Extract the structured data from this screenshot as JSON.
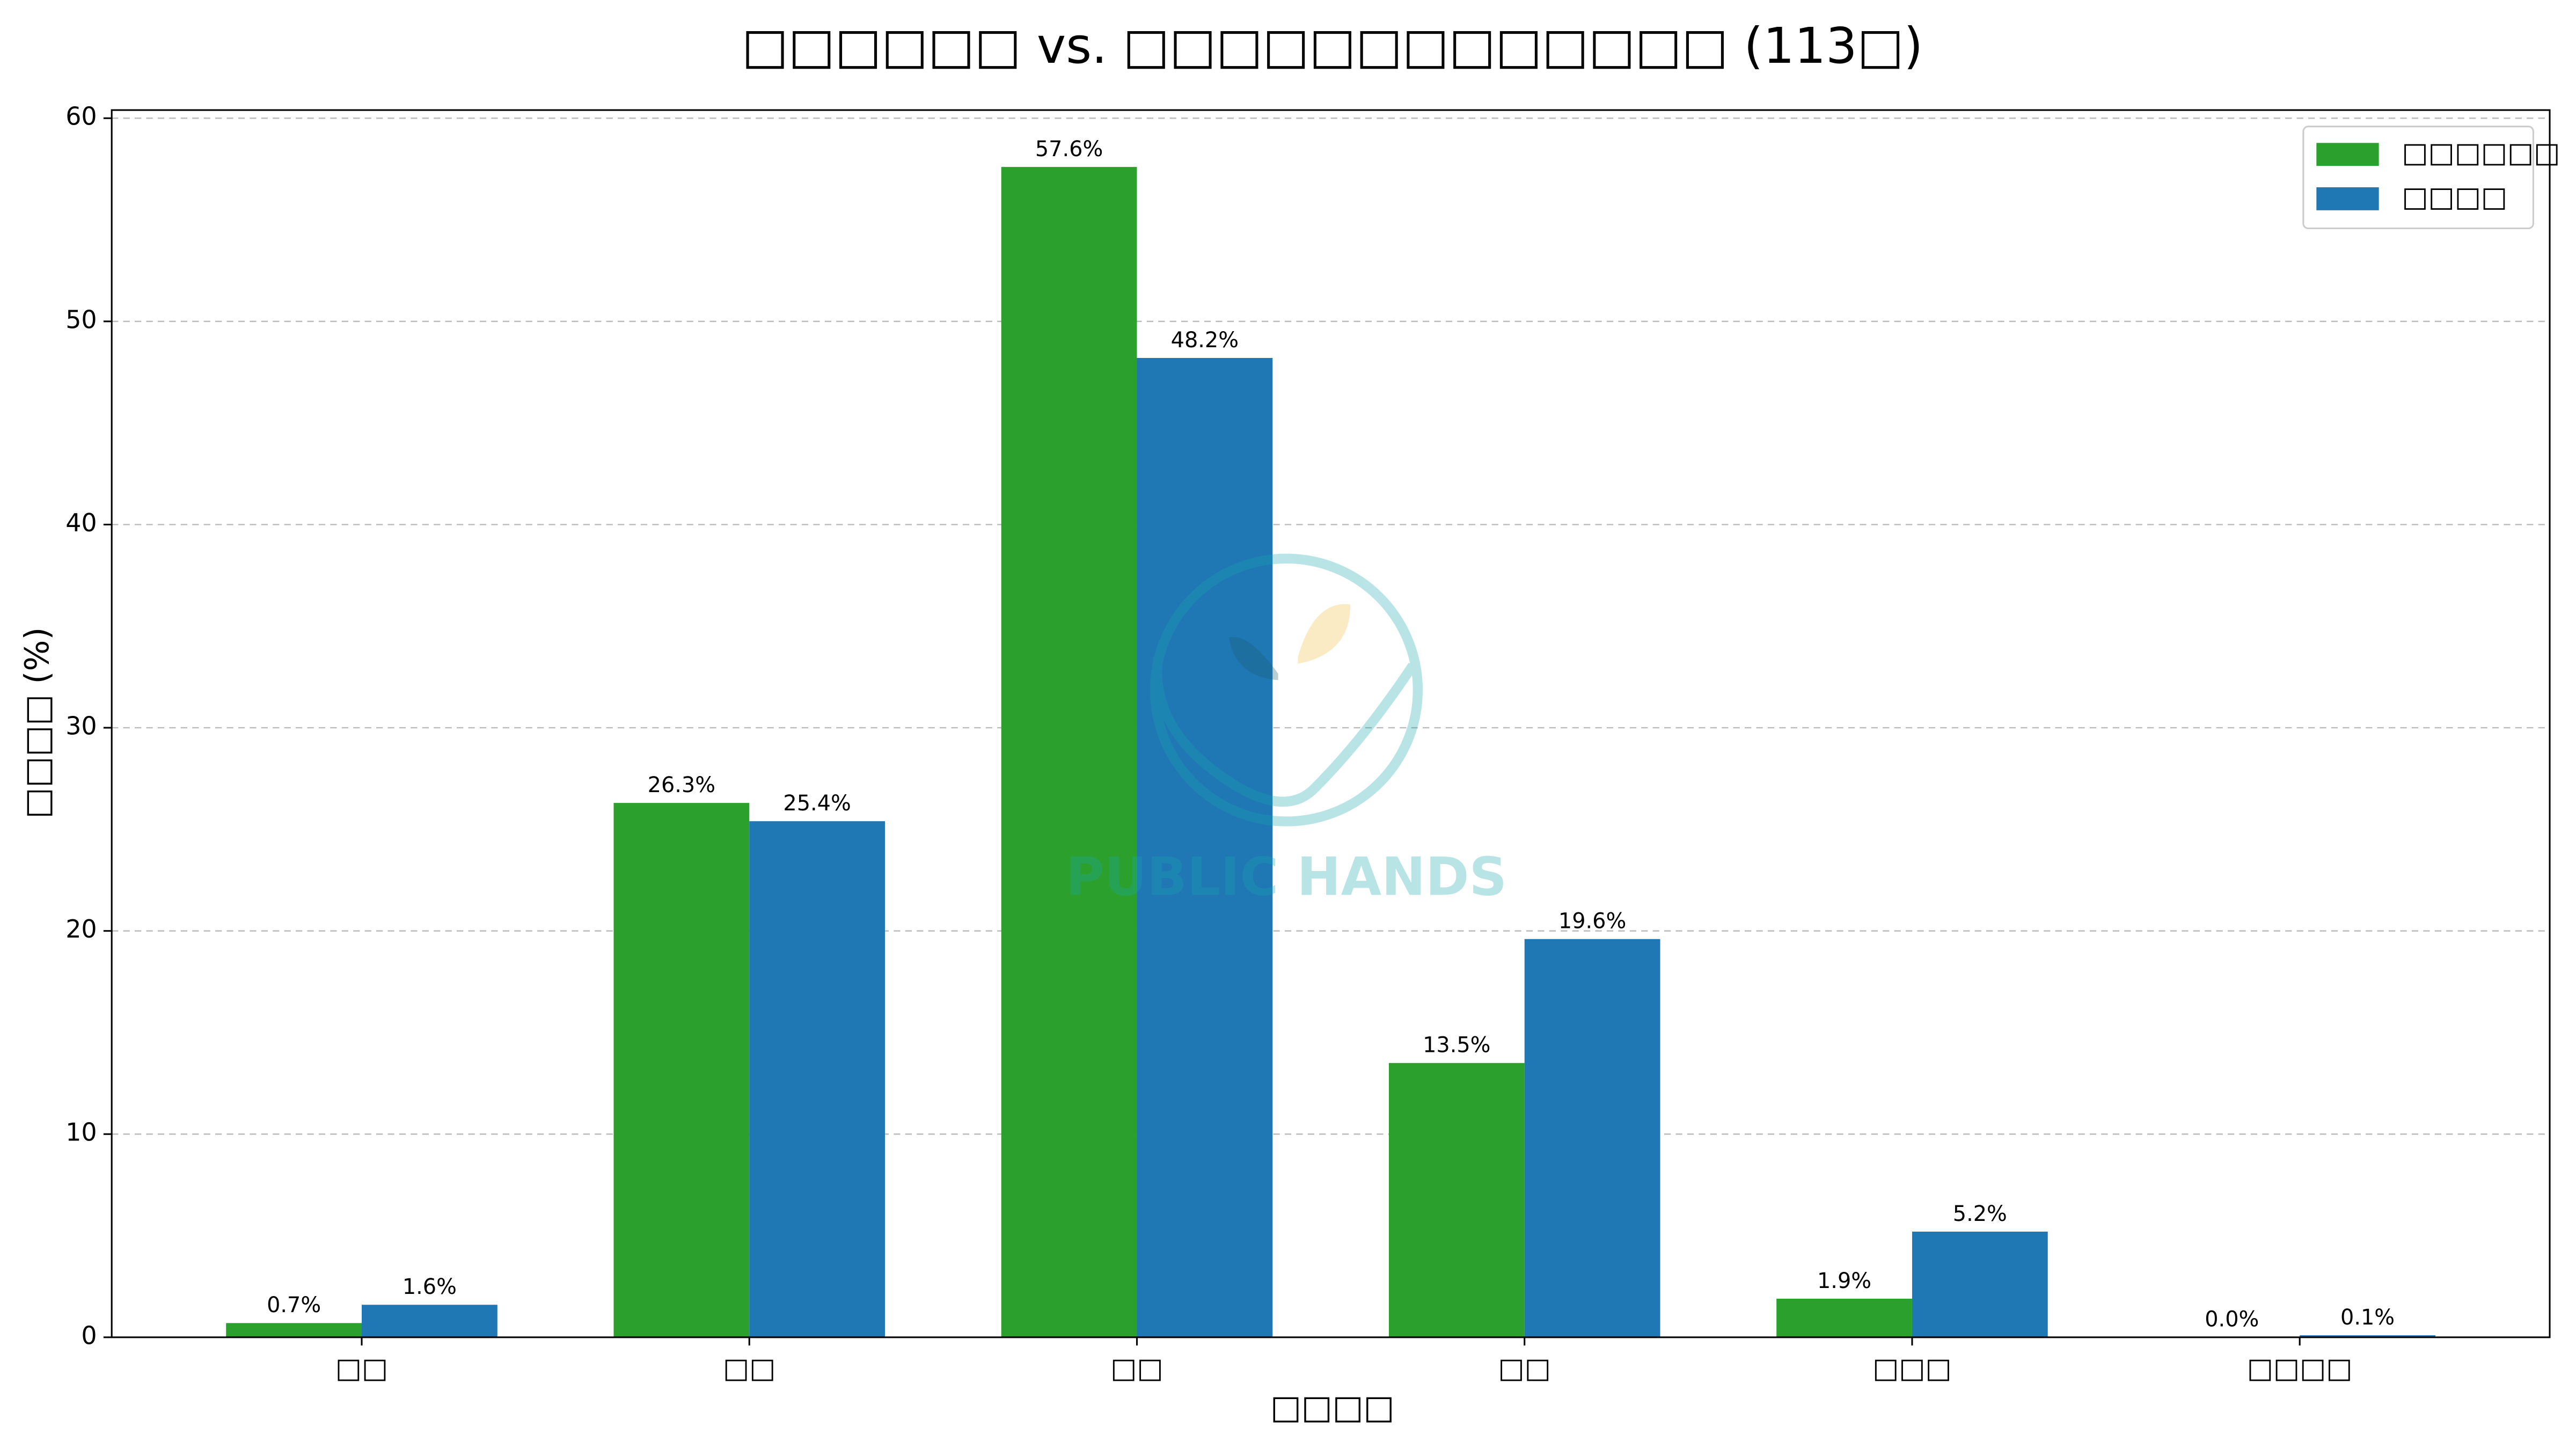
{
  "chart_data": {
    "type": "bar",
    "title": "□□□□□□ vs. □□□□□□□□□□□□□ (113□)",
    "xlabel": "□□□□",
    "ylabel": "□□□□ (%)",
    "categories": [
      "□□",
      "□□",
      "□□",
      "□□",
      "□□□",
      "□□□□"
    ],
    "series": [
      {
        "name": "□□□□□□",
        "color": "#2ca02c",
        "values": [
          0.7,
          26.3,
          57.6,
          13.5,
          1.9,
          0.0
        ],
        "value_labels": [
          "0.7%",
          "26.3%",
          "57.6%",
          "13.5%",
          "1.9%",
          "0.0%"
        ]
      },
      {
        "name": "□□□□",
        "color": "#1f77b4",
        "values": [
          1.6,
          25.4,
          48.2,
          19.6,
          5.2,
          0.1
        ],
        "value_labels": [
          "1.6%",
          "25.4%",
          "48.2%",
          "19.6%",
          "5.2%",
          "0.1%"
        ]
      }
    ],
    "ylim": [
      0,
      60.4
    ],
    "yticks": [
      0,
      10,
      20,
      30,
      40,
      50,
      60
    ],
    "grid": true,
    "legend": "upper right",
    "watermark": "PUBLIC HANDS"
  }
}
